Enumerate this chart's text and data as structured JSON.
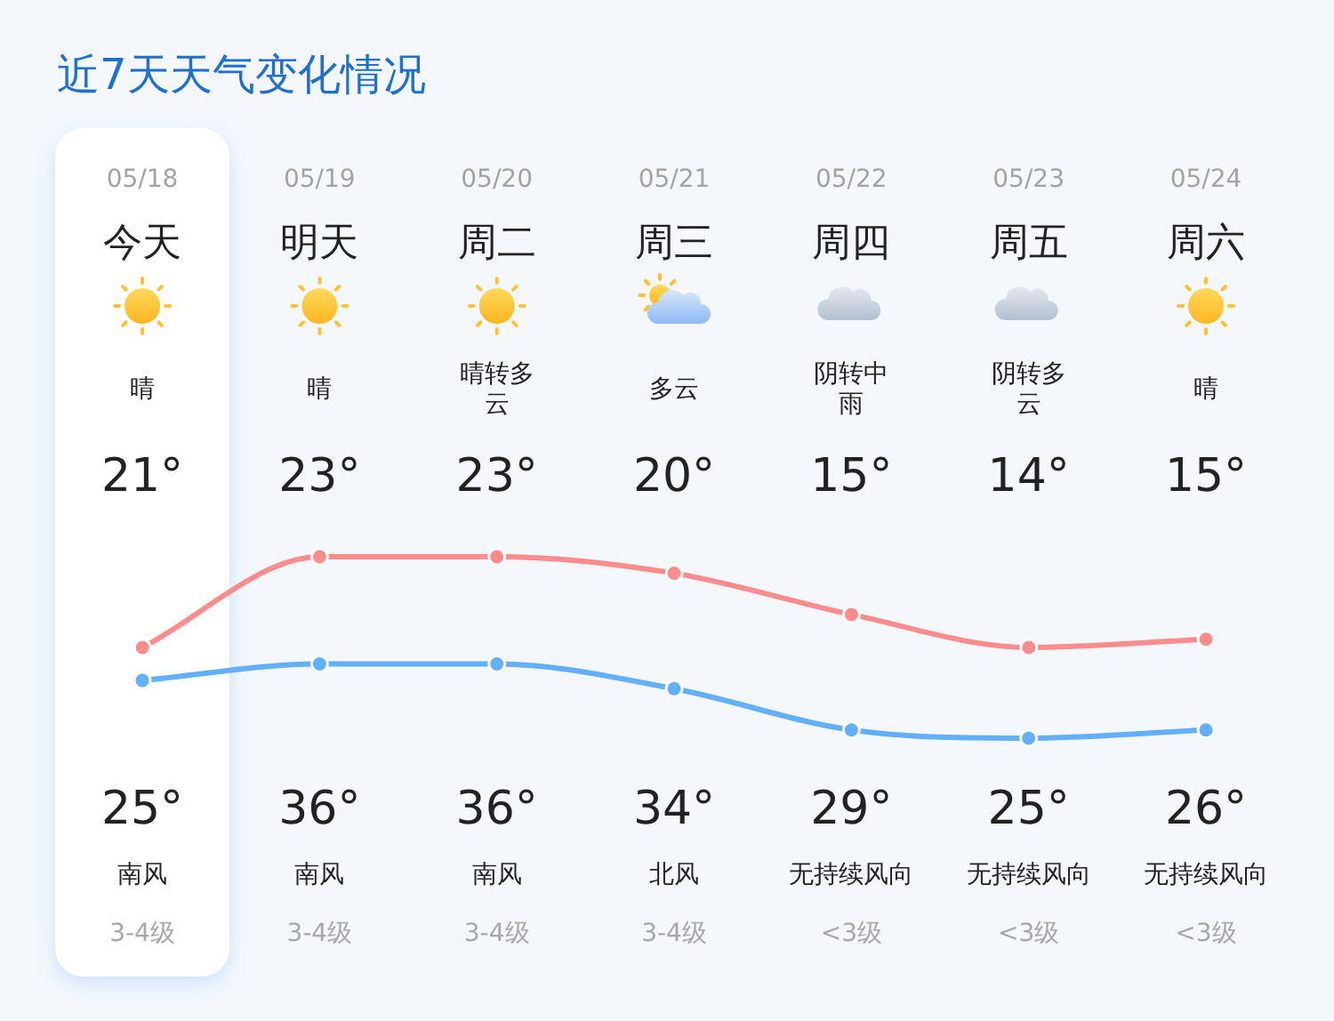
{
  "chart_data": {
    "type": "line",
    "title": "近7天天气变化情况",
    "categories": [
      "05/18",
      "05/19",
      "05/20",
      "05/21",
      "05/22",
      "05/23",
      "05/24"
    ],
    "series": [
      {
        "color": "#62b0fb",
        "values": [
          21,
          23,
          23,
          20,
          15,
          14,
          15
        ],
        "value_labels": [
          "21°",
          "23°",
          "23°",
          "20°",
          "15°",
          "14°",
          "15°"
        ]
      },
      {
        "color": "#ff8c8c",
        "values": [
          25,
          36,
          36,
          34,
          29,
          25,
          26
        ],
        "value_labels": [
          "25°",
          "36°",
          "36°",
          "34°",
          "29°",
          "25°",
          "26°"
        ]
      }
    ],
    "tick_labels": "x",
    "marker": "circle",
    "line_style": "solid",
    "bands": [
      {
        "axis": "x",
        "from": "05/18",
        "to": "05/18",
        "color": "#ffffff"
      }
    ],
    "annotations": [
      "今天",
      "明天",
      "周二",
      "周三",
      "周四",
      "周五",
      "周六",
      "晴",
      "晴",
      "晴转多云",
      "多云",
      "阴转中雨",
      "阴转多云",
      "晴",
      "南风",
      "南风",
      "南风",
      "北风",
      "无持续风向",
      "无持续风向",
      "无持续风向",
      "3-4级",
      "3-4级",
      "3-4级",
      "3-4级",
      "<3级",
      "<3级",
      "<3级"
    ]
  }
}
